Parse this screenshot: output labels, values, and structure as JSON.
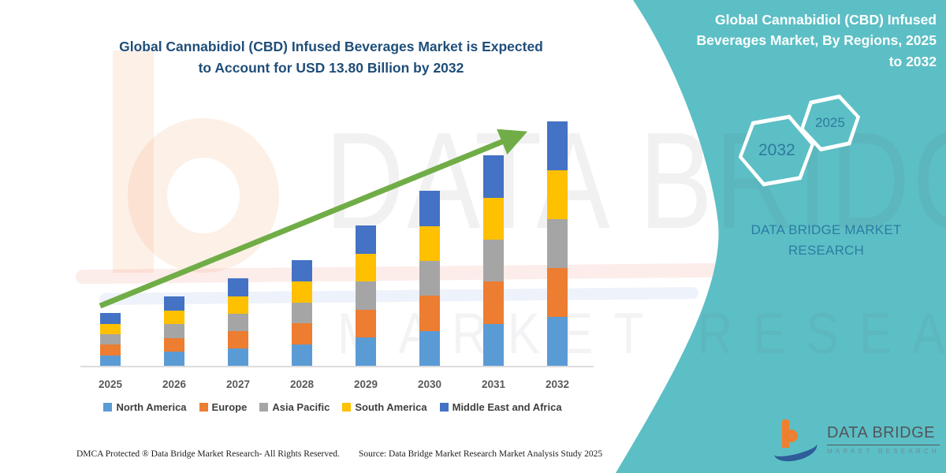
{
  "left_panel": {
    "title_line1": "Global Cannabidiol (CBD) Infused Beverages Market is Expected",
    "title_line2": "to Account for USD 13.80 Billion by 2032"
  },
  "right_panel": {
    "title_lines": [
      "Global Cannabidiol (CBD) Infused",
      "Beverages Market, By Regions, 2025",
      "to 2032"
    ],
    "hexagon_back_label": "2032",
    "hexagon_front_label": "2025",
    "brand": "DATA BRIDGE MARKET RESEARCH"
  },
  "chart_data": {
    "type": "bar",
    "stacked": true,
    "title": "Global Cannabidiol (CBD) Infused Beverages Market is Expected to Account for USD 13.80 Billion by 2032",
    "unit": "USD Billion",
    "categories": [
      "2025",
      "2026",
      "2027",
      "2028",
      "2029",
      "2030",
      "2031",
      "2032"
    ],
    "series": [
      {
        "name": "North America",
        "color": "#5B9BD5",
        "values": [
          0.6,
          0.78,
          0.99,
          1.19,
          1.58,
          1.97,
          2.37,
          2.76
        ]
      },
      {
        "name": "Europe",
        "color": "#ED7D31",
        "values": [
          0.59,
          0.78,
          0.98,
          1.19,
          1.58,
          1.97,
          2.37,
          2.76
        ]
      },
      {
        "name": "Asia Pacific",
        "color": "#A5A5A5",
        "values": [
          0.59,
          0.78,
          0.98,
          1.19,
          1.58,
          1.97,
          2.37,
          2.76
        ]
      },
      {
        "name": "South America",
        "color": "#FFC000",
        "values": [
          0.59,
          0.78,
          0.98,
          1.19,
          1.58,
          1.97,
          2.37,
          2.76
        ]
      },
      {
        "name": "Middle East and Africa",
        "color": "#4472C4",
        "values": [
          0.6,
          0.79,
          0.99,
          1.19,
          1.58,
          1.97,
          2.37,
          2.76
        ]
      }
    ],
    "totals": [
      2.97,
      3.91,
      4.92,
      5.95,
      7.9,
      9.85,
      11.85,
      13.8
    ],
    "ylim": [
      0,
      14
    ],
    "yaxis_visible": false,
    "grid": false,
    "legend_position": "bottom",
    "trend_arrow": {
      "present": true,
      "color": "#70AD47"
    }
  },
  "watermark": {
    "brand_top": "DATA BRIDGE",
    "brand_bottom": "MARKET RESEARCH"
  },
  "footer": {
    "dmca": "DMCA Protected ® Data Bridge Market Research-  All Rights Reserved.",
    "source": "Source: Data Bridge Market Research  Market Analysis Study 2025"
  },
  "logo": {
    "name": "DATA BRIDGE",
    "tagline": "MARKET RESEARCH"
  },
  "colors": {
    "panel_teal": "#5CBFC5",
    "title_blue": "#1F4E79",
    "brand_blue": "#2B7DA3",
    "hexagon_text": "#2E7A9F",
    "arrow_green": "#70AD47"
  }
}
